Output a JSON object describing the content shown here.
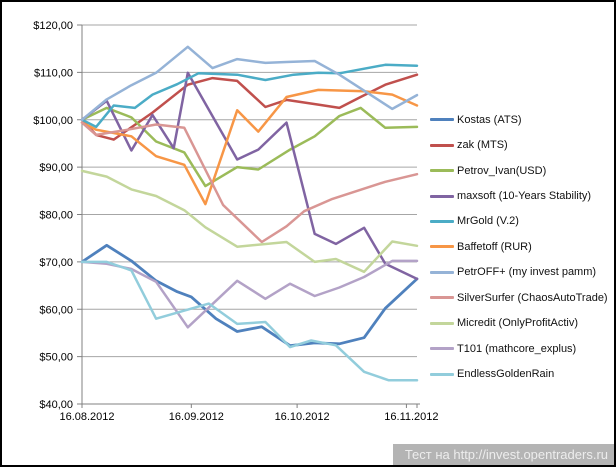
{
  "chart_data": {
    "type": "line",
    "title": "",
    "grid": true,
    "legend_position": "right",
    "line_width": 2.5,
    "y_axis": {
      "min": 40,
      "max": 120,
      "step": 10,
      "labels": [
        "$40,00",
        "$50,00",
        "$60,00",
        "$70,00",
        "$80,00",
        "$90,00",
        "$100,00",
        "$110,00",
        "$120,00"
      ]
    },
    "x_axis": {
      "min_day": 0,
      "max_day": 95,
      "ticks": [
        {
          "day": 0,
          "label": "16.08.2012"
        },
        {
          "day": 31,
          "label": "16.09.2012"
        },
        {
          "day": 61,
          "label": "16.10.2012"
        },
        {
          "day": 92,
          "label": "16.11.2012"
        }
      ]
    },
    "series": [
      {
        "name": "Kostas (ATS)",
        "color": "#4F81BD",
        "width": 2.8,
        "points": [
          [
            0,
            70
          ],
          [
            7,
            73.5
          ],
          [
            14,
            70.2
          ],
          [
            21,
            66
          ],
          [
            27,
            63.7
          ],
          [
            31,
            62.6
          ],
          [
            38,
            58
          ],
          [
            44,
            55.3
          ],
          [
            51,
            56.3
          ],
          [
            59,
            52.3
          ],
          [
            66,
            52.9
          ],
          [
            73,
            52.7
          ],
          [
            80,
            54
          ],
          [
            86,
            60.2
          ],
          [
            95,
            66.4
          ]
        ]
      },
      {
        "name": "zak (MTS)",
        "color": "#C0504D",
        "width": 2.5,
        "points": [
          [
            0,
            100
          ],
          [
            4,
            96.8
          ],
          [
            9,
            95.8
          ],
          [
            20,
            101.5
          ],
          [
            30,
            107.4
          ],
          [
            37,
            108.8
          ],
          [
            44,
            108.2
          ],
          [
            52,
            102.7
          ],
          [
            58,
            104.2
          ],
          [
            67,
            103.2
          ],
          [
            73,
            102.5
          ],
          [
            79,
            104.8
          ],
          [
            86,
            107.4
          ],
          [
            95,
            109.5
          ]
        ]
      },
      {
        "name": "Petrov_Ivan(USD)",
        "color": "#9BBB59",
        "width": 2.5,
        "points": [
          [
            0,
            100
          ],
          [
            7,
            102.5
          ],
          [
            14,
            100.5
          ],
          [
            21,
            95.4
          ],
          [
            29,
            93.1
          ],
          [
            35,
            86
          ],
          [
            44,
            90
          ],
          [
            50,
            89.5
          ],
          [
            59,
            93.7
          ],
          [
            66,
            96.5
          ],
          [
            73,
            100.8
          ],
          [
            79,
            102.5
          ],
          [
            86,
            98.3
          ],
          [
            95,
            98.5
          ]
        ]
      },
      {
        "name": "maxsoft (10-Years Stability)",
        "color": "#8064A2",
        "width": 2.5,
        "points": [
          [
            0,
            100
          ],
          [
            7,
            104
          ],
          [
            14,
            93.5
          ],
          [
            20,
            101
          ],
          [
            26,
            94
          ],
          [
            30,
            109.9
          ],
          [
            44,
            91.6
          ],
          [
            50,
            93.7
          ],
          [
            58,
            99.4
          ],
          [
            66,
            75.9
          ],
          [
            72,
            73.8
          ],
          [
            80,
            77.2
          ],
          [
            86,
            69.6
          ],
          [
            95,
            66.4
          ]
        ]
      },
      {
        "name": "MrGold (V.2)",
        "color": "#4BACC6",
        "width": 2.5,
        "points": [
          [
            0,
            100
          ],
          [
            4,
            98.5
          ],
          [
            9,
            103
          ],
          [
            15,
            102.5
          ],
          [
            20,
            105.3
          ],
          [
            27,
            107.5
          ],
          [
            33,
            109.8
          ],
          [
            44,
            109.5
          ],
          [
            52,
            108.4
          ],
          [
            60,
            109.5
          ],
          [
            67,
            109.9
          ],
          [
            73,
            109.8
          ],
          [
            86,
            111.6
          ],
          [
            95,
            111.4
          ]
        ]
      },
      {
        "name": "Baffetoff (RUR)",
        "color": "#F79646",
        "width": 2.5,
        "points": [
          [
            0,
            99.4
          ],
          [
            4,
            97.9
          ],
          [
            9,
            97.2
          ],
          [
            14,
            96.5
          ],
          [
            21,
            92.3
          ],
          [
            29,
            90.5
          ],
          [
            35,
            82.2
          ],
          [
            44,
            102
          ],
          [
            50,
            97.5
          ],
          [
            58,
            104.8
          ],
          [
            67,
            106.3
          ],
          [
            80,
            106
          ],
          [
            88,
            105.3
          ],
          [
            95,
            103
          ]
        ]
      },
      {
        "name": "PetrOFF+ (my invest pamm)",
        "color": "#95B3D7",
        "width": 2.5,
        "points": [
          [
            0,
            100
          ],
          [
            7,
            104.3
          ],
          [
            14,
            107.3
          ],
          [
            21,
            109.9
          ],
          [
            30,
            115.4
          ],
          [
            37,
            110.9
          ],
          [
            44,
            112.8
          ],
          [
            52,
            112
          ],
          [
            58,
            112.2
          ],
          [
            66,
            112.4
          ],
          [
            73,
            109.5
          ],
          [
            88,
            102.3
          ],
          [
            95,
            105.2
          ]
        ]
      },
      {
        "name": "SilverSurfer (ChaosAutoTrade)",
        "color": "#D99694",
        "width": 2.5,
        "points": [
          [
            0,
            99.4
          ],
          [
            4,
            96.8
          ],
          [
            13,
            97.9
          ],
          [
            21,
            99
          ],
          [
            29,
            98.3
          ],
          [
            40,
            82
          ],
          [
            51,
            74.2
          ],
          [
            58,
            77.5
          ],
          [
            63,
            80.7
          ],
          [
            71,
            83.3
          ],
          [
            86,
            86.9
          ],
          [
            95,
            88.5
          ]
        ]
      },
      {
        "name": "Micredit (OnlyProfitActiv)",
        "color": "#C3D69B",
        "width": 2.5,
        "points": [
          [
            0,
            89.2
          ],
          [
            7,
            88
          ],
          [
            14,
            85.3
          ],
          [
            21,
            83.9
          ],
          [
            29,
            80.9
          ],
          [
            35,
            77.3
          ],
          [
            44,
            73.2
          ],
          [
            58,
            74.2
          ],
          [
            66,
            70
          ],
          [
            72,
            70.6
          ],
          [
            80,
            67.9
          ],
          [
            88,
            74.3
          ],
          [
            95,
            73.4
          ]
        ]
      },
      {
        "name": "T101 (mathcore_explus)",
        "color": "#B3A2C7",
        "width": 2.5,
        "points": [
          [
            0,
            70
          ],
          [
            7,
            69.6
          ],
          [
            14,
            68.5
          ],
          [
            21,
            65.8
          ],
          [
            30,
            56.2
          ],
          [
            44,
            66
          ],
          [
            52,
            62.2
          ],
          [
            59,
            65.4
          ],
          [
            66,
            62.8
          ],
          [
            73,
            64.6
          ],
          [
            80,
            66.8
          ],
          [
            88,
            70.2
          ],
          [
            95,
            70.2
          ]
        ]
      },
      {
        "name": "EndlessGoldenRain",
        "color": "#92CDDC",
        "width": 2.5,
        "points": [
          [
            0,
            70
          ],
          [
            7,
            70
          ],
          [
            14,
            68.2
          ],
          [
            21,
            58
          ],
          [
            36,
            61.2
          ],
          [
            44,
            56.9
          ],
          [
            52,
            57.3
          ],
          [
            59,
            52
          ],
          [
            65,
            53.4
          ],
          [
            72,
            52.4
          ],
          [
            80,
            46.8
          ],
          [
            87,
            45
          ],
          [
            95,
            45
          ]
        ]
      }
    ]
  },
  "watermark": {
    "text": "Тест на http://invest.opentraders.ru"
  },
  "colors": {
    "background": "#FFFFFF",
    "border": "#000000",
    "gridline": "#A6A6A6",
    "axis": "#808080",
    "tick_label": "#000000",
    "watermark_bg": "#B4B4B4",
    "watermark_text": "#EDEDED"
  }
}
